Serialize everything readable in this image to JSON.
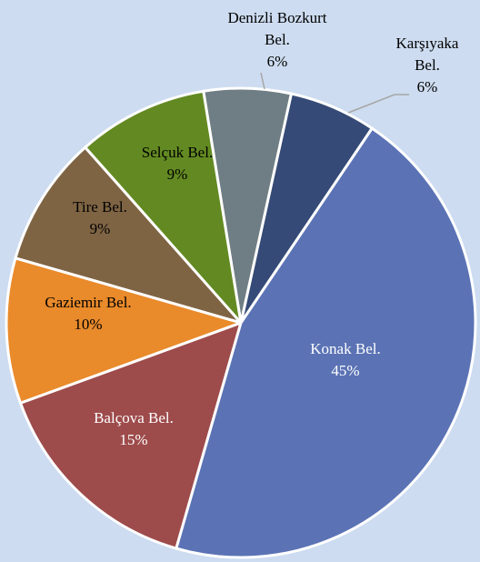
{
  "chart_data": {
    "type": "pie",
    "categories": [
      "Konak Bel.",
      "Balçova Bel.",
      "Gaziemir Bel.",
      "Tire Bel.",
      "Selçuk Bel.",
      "Denizli Bozkurt Bel.",
      "Karşıyaka Bel."
    ],
    "values": [
      45,
      15,
      10,
      9,
      9,
      6,
      6
    ],
    "value_labels": [
      "45%",
      "15%",
      "10%",
      "9%",
      "9%",
      "6%",
      "6%"
    ],
    "colors": [
      "#5b73b5",
      "#9e4b4b",
      "#e98a2b",
      "#7f6444",
      "#638a22",
      "#6f7e84",
      "#354a76"
    ]
  }
}
